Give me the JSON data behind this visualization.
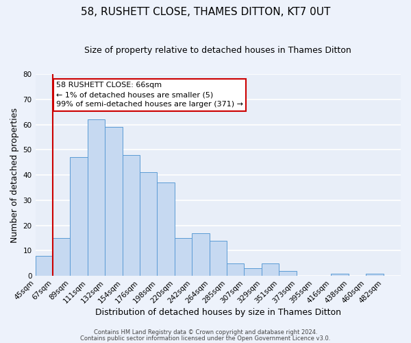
{
  "title": "58, RUSHETT CLOSE, THAMES DITTON, KT7 0UT",
  "subtitle": "Size of property relative to detached houses in Thames Ditton",
  "xlabel": "Distribution of detached houses by size in Thames Ditton",
  "ylabel": "Number of detached properties",
  "bin_labels": [
    "45sqm",
    "67sqm",
    "89sqm",
    "111sqm",
    "132sqm",
    "154sqm",
    "176sqm",
    "198sqm",
    "220sqm",
    "242sqm",
    "264sqm",
    "285sqm",
    "307sqm",
    "329sqm",
    "351sqm",
    "373sqm",
    "395sqm",
    "416sqm",
    "438sqm",
    "460sqm",
    "482sqm"
  ],
  "bar_heights": [
    8,
    15,
    47,
    62,
    59,
    48,
    41,
    37,
    15,
    17,
    14,
    5,
    3,
    5,
    2,
    0,
    0,
    1,
    0,
    1,
    0
  ],
  "bar_color": "#c6d9f1",
  "bar_edge_color": "#5b9bd5",
  "ylim": [
    0,
    80
  ],
  "yticks": [
    0,
    10,
    20,
    30,
    40,
    50,
    60,
    70,
    80
  ],
  "vline_x_bin": 1,
  "vline_color": "#cc0000",
  "annotation_title": "58 RUSHETT CLOSE: 66sqm",
  "annotation_line1": "← 1% of detached houses are smaller (5)",
  "annotation_line2": "99% of semi-detached houses are larger (371) →",
  "annotation_box_facecolor": "#ffffff",
  "annotation_box_edgecolor": "#cc0000",
  "footer1": "Contains HM Land Registry data © Crown copyright and database right 2024.",
  "footer2": "Contains public sector information licensed under the Open Government Licence v3.0.",
  "bg_color": "#edf2fb",
  "plot_bg_color": "#e8eef8",
  "grid_color": "#ffffff",
  "title_fontsize": 11,
  "subtitle_fontsize": 9,
  "axis_label_fontsize": 9,
  "tick_fontsize": 7.5,
  "footer_fontsize": 6,
  "annotation_fontsize": 8
}
